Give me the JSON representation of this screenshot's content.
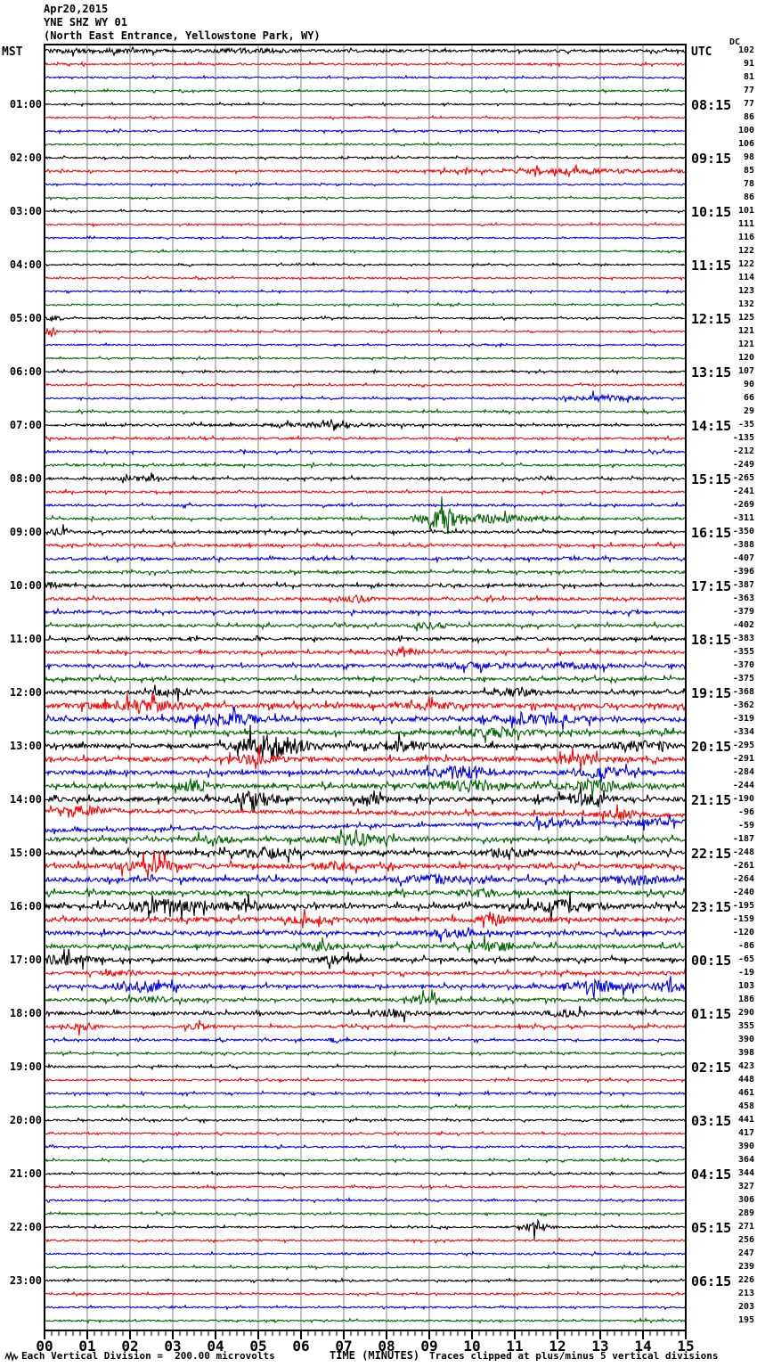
{
  "header": {
    "date": "Apr20,2015",
    "station": "YNE SHZ WY 01",
    "location": "(North East Entrance, Yellowstone Park, WY)",
    "left_tz": "MST",
    "right_tz": "UTC",
    "dc_label": "DC"
  },
  "footer": {
    "scale_note": "Each Vertical Division =  200.00 microvolts",
    "xaxis_title": "TIME (MINUTES)",
    "clip_note": "Traces clipped at plus/minus 5 vertical divisions"
  },
  "x_axis": {
    "ticks": [
      "00",
      "01",
      "02",
      "03",
      "04",
      "05",
      "06",
      "07",
      "08",
      "09",
      "10",
      "11",
      "12",
      "13",
      "14",
      "15"
    ],
    "minutes_per_line": 15,
    "minor_ticks_per_minute": 6
  },
  "colors": {
    "trace_cycle": [
      "#000000",
      "#ff0000",
      "#0000ee",
      "#006400"
    ],
    "grid": "#808080",
    "border": "#000000",
    "background": "#ffffff",
    "text": "#000000"
  },
  "chart_data": {
    "type": "line",
    "title": "YNE SHZ WY 01 webicorder Apr20,2015",
    "xlabel": "TIME (MINUTES)",
    "x_range": [
      0,
      15
    ],
    "minutes_per_row": 15,
    "rows_per_hour": 4,
    "clip_divisions": 5,
    "microvolts_per_division": 200.0,
    "rows": [
      {
        "dc": 102,
        "amp": 1.4,
        "ev": [
          [
            1.2,
            1.5,
            1.2
          ],
          [
            4.8,
            1.5,
            0.9
          ]
        ]
      },
      {
        "dc": 91,
        "amp": 0.9
      },
      {
        "dc": 81,
        "amp": 0.9
      },
      {
        "dc": 77,
        "amp": 0.8
      },
      {
        "dc": 77,
        "amp": 0.8,
        "mst": "01:00",
        "utc": "08:15"
      },
      {
        "dc": 86,
        "amp": 0.8
      },
      {
        "dc": 100,
        "amp": 0.9
      },
      {
        "dc": 106,
        "amp": 0.8
      },
      {
        "dc": 98,
        "amp": 0.9,
        "mst": "02:00",
        "utc": "09:15"
      },
      {
        "dc": 85,
        "amp": 1.0,
        "ev": [
          [
            12.3,
            1.8,
            2.6
          ]
        ]
      },
      {
        "dc": 78,
        "amp": 0.8
      },
      {
        "dc": 86,
        "amp": 0.8
      },
      {
        "dc": 101,
        "amp": 0.8,
        "mst": "03:00",
        "utc": "10:15"
      },
      {
        "dc": 111,
        "amp": 0.8
      },
      {
        "dc": 116,
        "amp": 0.8
      },
      {
        "dc": 122,
        "amp": 0.8
      },
      {
        "dc": 122,
        "amp": 0.8,
        "mst": "04:00",
        "utc": "11:15"
      },
      {
        "dc": 114,
        "amp": 0.8
      },
      {
        "dc": 123,
        "amp": 0.8
      },
      {
        "dc": 132,
        "amp": 0.8
      },
      {
        "dc": 125,
        "amp": 0.9,
        "mst": "05:00",
        "utc": "12:15",
        "ev": [
          [
            0.25,
            2.5,
            0.2
          ]
        ]
      },
      {
        "dc": 121,
        "amp": 0.8,
        "ev": [
          [
            0.15,
            6,
            0.12
          ]
        ]
      },
      {
        "dc": 121,
        "amp": 0.8
      },
      {
        "dc": 120,
        "amp": 0.8
      },
      {
        "dc": 107,
        "amp": 0.9,
        "mst": "06:00",
        "utc": "13:15"
      },
      {
        "dc": 90,
        "amp": 0.9
      },
      {
        "dc": 66,
        "amp": 0.9,
        "ev": [
          [
            13.1,
            3,
            0.9
          ]
        ]
      },
      {
        "dc": 29,
        "amp": 1.0
      },
      {
        "dc": -35,
        "amp": 1.2,
        "mst": "07:00",
        "utc": "14:15",
        "ev": [
          [
            6.5,
            1.5,
            1.5
          ]
        ]
      },
      {
        "dc": -135,
        "amp": 1.1
      },
      {
        "dc": -212,
        "amp": 1.1
      },
      {
        "dc": -249,
        "amp": 1.1
      },
      {
        "dc": -265,
        "amp": 1.2,
        "mst": "08:00",
        "utc": "15:15",
        "ev": [
          [
            2.2,
            2,
            0.5
          ]
        ]
      },
      {
        "dc": -241,
        "amp": 1.1
      },
      {
        "dc": -269,
        "amp": 1.1
      },
      {
        "dc": -311,
        "amp": 1.2,
        "ev": [
          [
            9.3,
            9,
            0.5
          ],
          [
            10.4,
            4,
            1.2
          ]
        ]
      },
      {
        "dc": -350,
        "amp": 1.4,
        "mst": "09:00",
        "utc": "16:15",
        "ev": [
          [
            0.3,
            2.5,
            0.3
          ]
        ]
      },
      {
        "dc": -388,
        "amp": 1.4
      },
      {
        "dc": -407,
        "amp": 1.5
      },
      {
        "dc": -396,
        "amp": 1.4
      },
      {
        "dc": -387,
        "amp": 1.5,
        "mst": "10:00",
        "utc": "17:15",
        "ev": [
          [
            0.2,
            3,
            0.25
          ]
        ]
      },
      {
        "dc": -363,
        "amp": 1.5,
        "ev": [
          [
            7.3,
            3.5,
            0.3
          ]
        ]
      },
      {
        "dc": -379,
        "amp": 1.6
      },
      {
        "dc": -402,
        "amp": 1.5,
        "ev": [
          [
            9.0,
            2.5,
            0.5
          ]
        ]
      },
      {
        "dc": -383,
        "amp": 1.6,
        "mst": "11:00",
        "utc": "18:15"
      },
      {
        "dc": -355,
        "amp": 1.6,
        "ev": [
          [
            8.4,
            5,
            0.3
          ]
        ]
      },
      {
        "dc": -370,
        "amp": 1.7,
        "ev": [
          [
            10,
            2.5,
            0.9
          ],
          [
            12.6,
            2.5,
            0.7
          ]
        ]
      },
      {
        "dc": -375,
        "amp": 1.7
      },
      {
        "dc": -368,
        "amp": 1.9,
        "mst": "12:00",
        "utc": "19:15",
        "ev": [
          [
            3,
            3,
            0.5
          ],
          [
            11,
            3,
            0.5
          ]
        ]
      },
      {
        "dc": -362,
        "amp": 2.4,
        "ev": [
          [
            2.3,
            4,
            1.1
          ],
          [
            9,
            3,
            0.6
          ]
        ]
      },
      {
        "dc": -319,
        "amp": 2.2,
        "ev": [
          [
            4.2,
            6,
            0.8
          ],
          [
            11.6,
            5,
            0.9
          ]
        ]
      },
      {
        "dc": -334,
        "amp": 2.2,
        "ev": [
          [
            10.5,
            3.5,
            0.8
          ]
        ]
      },
      {
        "dc": -295,
        "amp": 2.2,
        "mst": "13:00",
        "utc": "20:15",
        "ev": [
          [
            5.3,
            11,
            0.8
          ],
          [
            8.3,
            4.5,
            0.6
          ],
          [
            14,
            4,
            0.7
          ]
        ]
      },
      {
        "dc": -291,
        "amp": 2.4,
        "ev": [
          [
            5,
            4,
            0.5
          ],
          [
            12.5,
            4.5,
            0.7
          ]
        ]
      },
      {
        "dc": -284,
        "amp": 2.2,
        "ev": [
          [
            9.7,
            6,
            0.8
          ],
          [
            13,
            4.5,
            0.6
          ]
        ]
      },
      {
        "dc": -244,
        "amp": 2.2,
        "ev": [
          [
            3.5,
            4.5,
            0.4
          ],
          [
            9.9,
            5.5,
            0.9
          ],
          [
            13,
            4.5,
            0.8
          ]
        ]
      },
      {
        "dc": -190,
        "amp": 2.3,
        "mst": "14:00",
        "utc": "21:15",
        "ev": [
          [
            4.9,
            8,
            0.5
          ],
          [
            7.6,
            4,
            0.4
          ],
          [
            12.6,
            5,
            0.6
          ]
        ]
      },
      {
        "dc": -96,
        "amp": 2.0,
        "slope": 6,
        "ev": [
          [
            1,
            3.5,
            0.5
          ],
          [
            13.5,
            5,
            0.4
          ]
        ]
      },
      {
        "dc": -59,
        "amp": 1.8,
        "slope": -10,
        "ev": [
          [
            12,
            3.5,
            0.6
          ],
          [
            14.2,
            4,
            0.5
          ]
        ]
      },
      {
        "dc": -187,
        "amp": 2.2,
        "ev": [
          [
            4,
            3.5,
            0.4
          ],
          [
            7.3,
            5.5,
            0.8
          ]
        ]
      },
      {
        "dc": -248,
        "amp": 2.4,
        "mst": "15:00",
        "utc": "22:15",
        "ev": [
          [
            5.2,
            4.5,
            0.6
          ],
          [
            10.8,
            3.5,
            0.5
          ]
        ]
      },
      {
        "dc": -261,
        "amp": 2.4,
        "ev": [
          [
            2.5,
            4.5,
            0.8
          ],
          [
            6.8,
            3.5,
            0.4
          ]
        ]
      },
      {
        "dc": -264,
        "amp": 2.4,
        "ev": [
          [
            9,
            3.5,
            0.6
          ],
          [
            13.8,
            4.5,
            0.6
          ]
        ]
      },
      {
        "dc": -240,
        "amp": 2.2,
        "ev": [
          [
            10.2,
            3.5,
            0.5
          ]
        ]
      },
      {
        "dc": -195,
        "amp": 2.3,
        "mst": "16:00",
        "utc": "23:15",
        "ev": [
          [
            2.8,
            6,
            0.9
          ],
          [
            4.7,
            4.5,
            0.5
          ],
          [
            12.2,
            6,
            0.8
          ]
        ]
      },
      {
        "dc": -159,
        "amp": 2.4,
        "ev": [
          [
            6.2,
            3.5,
            0.5
          ],
          [
            10.5,
            3.5,
            0.4
          ]
        ]
      },
      {
        "dc": -120,
        "amp": 2.0,
        "ev": [
          [
            9.5,
            3.5,
            0.5
          ]
        ]
      },
      {
        "dc": -86,
        "amp": 2.0,
        "ev": [
          [
            6.5,
            3.5,
            0.4
          ],
          [
            10.6,
            4.5,
            0.5
          ]
        ]
      },
      {
        "dc": -65,
        "amp": 2.0,
        "mst": "17:00",
        "utc": "00:15",
        "ev": [
          [
            0.5,
            4.5,
            0.6
          ],
          [
            6.8,
            3.5,
            0.5
          ]
        ]
      },
      {
        "dc": -19,
        "amp": 1.6,
        "ev": [
          [
            1.8,
            2.5,
            0.4
          ]
        ]
      },
      {
        "dc": 103,
        "amp": 1.8,
        "ev": [
          [
            2.2,
            5,
            0.7
          ],
          [
            12.9,
            6,
            0.7
          ],
          [
            14.6,
            5,
            0.4
          ]
        ]
      },
      {
        "dc": 186,
        "amp": 1.8,
        "ev": [
          [
            2.5,
            2.5,
            0.4
          ],
          [
            8.9,
            4.5,
            0.4
          ]
        ]
      },
      {
        "dc": 290,
        "amp": 1.8,
        "mst": "18:00",
        "utc": "01:15",
        "ev": [
          [
            8.2,
            3.5,
            0.4
          ],
          [
            12.2,
            3.5,
            0.4
          ]
        ]
      },
      {
        "dc": 355,
        "amp": 1.3,
        "ev": [
          [
            0.8,
            3,
            0.3
          ],
          [
            3.6,
            2.5,
            0.3
          ]
        ]
      },
      {
        "dc": 390,
        "amp": 1.1,
        "ev": [
          [
            6.8,
            2.5,
            0.15
          ]
        ]
      },
      {
        "dc": 398,
        "amp": 1.1
      },
      {
        "dc": 423,
        "amp": 1.0,
        "mst": "19:00",
        "utc": "02:15"
      },
      {
        "dc": 448,
        "amp": 1.0
      },
      {
        "dc": 461,
        "amp": 1.0
      },
      {
        "dc": 458,
        "amp": 1.0
      },
      {
        "dc": 441,
        "amp": 1.0,
        "mst": "20:00",
        "utc": "03:15"
      },
      {
        "dc": 417,
        "amp": 0.9
      },
      {
        "dc": 390,
        "amp": 0.9
      },
      {
        "dc": 364,
        "amp": 0.9
      },
      {
        "dc": 344,
        "amp": 0.9,
        "mst": "21:00",
        "utc": "04:15"
      },
      {
        "dc": 327,
        "amp": 0.9
      },
      {
        "dc": 306,
        "amp": 0.9
      },
      {
        "dc": 289,
        "amp": 0.9
      },
      {
        "dc": 271,
        "amp": 0.9,
        "mst": "22:00",
        "utc": "05:15",
        "ev": [
          [
            11.5,
            5,
            0.3
          ]
        ]
      },
      {
        "dc": 256,
        "amp": 0.9
      },
      {
        "dc": 247,
        "amp": 0.9
      },
      {
        "dc": 239,
        "amp": 0.9
      },
      {
        "dc": 226,
        "amp": 0.9,
        "mst": "23:00",
        "utc": "06:15"
      },
      {
        "dc": 213,
        "amp": 0.9
      },
      {
        "dc": 203,
        "amp": 0.9
      },
      {
        "dc": 195,
        "amp": 0.9
      }
    ]
  }
}
